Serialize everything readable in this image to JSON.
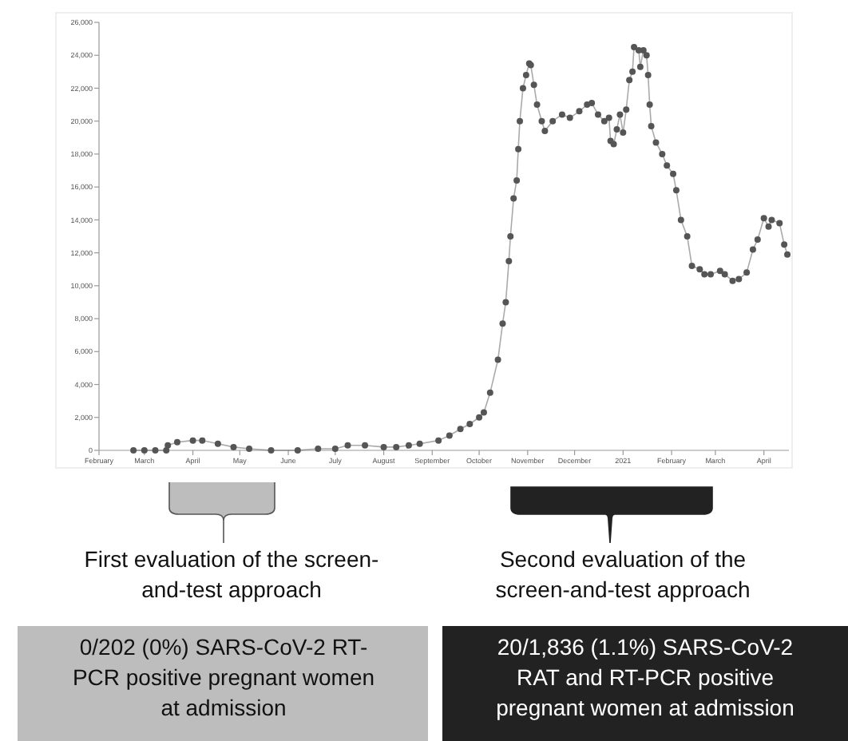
{
  "chart_data": {
    "type": "line",
    "marker": "circle",
    "grid": false,
    "xlim": [
      "2020-02-01",
      "2021-04-17"
    ],
    "xticks": [
      {
        "value": "2020-02-01",
        "label": "February"
      },
      {
        "value": "2020-03-01",
        "label": "March"
      },
      {
        "value": "2020-04-01",
        "label": "April"
      },
      {
        "value": "2020-05-01",
        "label": "May"
      },
      {
        "value": "2020-06-01",
        "label": "June"
      },
      {
        "value": "2020-07-01",
        "label": "July"
      },
      {
        "value": "2020-08-01",
        "label": "August"
      },
      {
        "value": "2020-09-01",
        "label": "September"
      },
      {
        "value": "2020-10-01",
        "label": "October"
      },
      {
        "value": "2020-11-01",
        "label": "November"
      },
      {
        "value": "2020-12-01",
        "label": "December"
      },
      {
        "value": "2021-01-01",
        "label": "2021"
      },
      {
        "value": "2021-02-01",
        "label": "February"
      },
      {
        "value": "2021-03-01",
        "label": "March"
      },
      {
        "value": "2021-04-01",
        "label": "April"
      }
    ],
    "ylim": [
      0,
      26000
    ],
    "yticks": [
      {
        "value": 0,
        "label": "0"
      },
      {
        "value": 2000,
        "label": "2,000"
      },
      {
        "value": 4000,
        "label": "4,000"
      },
      {
        "value": 6000,
        "label": "6,000"
      },
      {
        "value": 8000,
        "label": "8,000"
      },
      {
        "value": 10000,
        "label": "10,000"
      },
      {
        "value": 12000,
        "label": "12,000"
      },
      {
        "value": 14000,
        "label": "14,000"
      },
      {
        "value": 16000,
        "label": "16,000"
      },
      {
        "value": 18000,
        "label": "18,000"
      },
      {
        "value": 20000,
        "label": "20,000"
      },
      {
        "value": 22000,
        "label": "22,000"
      },
      {
        "value": 24000,
        "label": "24,000"
      },
      {
        "value": 26000,
        "label": "26,000"
      }
    ],
    "series": [
      {
        "color": "#555555",
        "x": [
          "2020-02-23",
          "2020-03-01",
          "2020-03-08",
          "2020-03-15",
          "2020-03-16",
          "2020-03-22",
          "2020-04-01",
          "2020-04-07",
          "2020-04-17",
          "2020-04-27",
          "2020-05-07",
          "2020-05-21",
          "2020-06-07",
          "2020-06-20",
          "2020-07-01",
          "2020-07-09",
          "2020-07-20",
          "2020-08-01",
          "2020-08-09",
          "2020-08-17",
          "2020-08-24",
          "2020-09-05",
          "2020-09-12",
          "2020-09-19",
          "2020-09-25",
          "2020-10-01",
          "2020-10-04",
          "2020-10-08",
          "2020-10-13",
          "2020-10-16",
          "2020-10-18",
          "2020-10-20",
          "2020-10-21",
          "2020-10-23",
          "2020-10-25",
          "2020-10-26",
          "2020-10-27",
          "2020-10-29",
          "2020-10-31",
          "2020-11-02",
          "2020-11-03",
          "2020-11-05",
          "2020-11-07",
          "2020-11-10",
          "2020-11-12",
          "2020-11-17",
          "2020-11-23",
          "2020-11-28",
          "2020-12-04",
          "2020-12-09",
          "2020-12-12",
          "2020-12-16",
          "2020-12-20",
          "2020-12-23",
          "2020-12-24",
          "2020-12-26",
          "2020-12-28",
          "2020-12-30",
          "2021-01-01",
          "2021-01-03",
          "2021-01-05",
          "2021-01-07",
          "2021-01-08",
          "2021-01-11",
          "2021-01-12",
          "2021-01-14",
          "2021-01-16",
          "2021-01-17",
          "2021-01-18",
          "2021-01-19",
          "2021-01-22",
          "2021-01-26",
          "2021-01-29",
          "2021-02-02",
          "2021-02-04",
          "2021-02-07",
          "2021-02-11",
          "2021-02-14",
          "2021-02-19",
          "2021-02-22",
          "2021-02-26",
          "2021-03-04",
          "2021-03-07",
          "2021-03-12",
          "2021-03-16",
          "2021-03-21",
          "2021-03-25",
          "2021-03-28",
          "2021-04-01",
          "2021-04-04",
          "2021-04-06",
          "2021-04-11",
          "2021-04-14",
          "2021-04-16"
        ],
        "values": [
          0,
          0,
          0,
          0,
          300,
          500,
          600,
          600,
          400,
          200,
          100,
          0,
          0,
          100,
          100,
          300,
          300,
          200,
          200,
          300,
          400,
          600,
          900,
          1300,
          1600,
          2000,
          2300,
          3500,
          5500,
          7700,
          9000,
          11500,
          13000,
          15300,
          16400,
          18300,
          20000,
          22000,
          22800,
          23500,
          23400,
          22200,
          21000,
          20000,
          19400,
          20000,
          20400,
          20200,
          20600,
          21000,
          21100,
          20400,
          20000,
          20200,
          18800,
          18600,
          19500,
          20400,
          19300,
          20700,
          22500,
          23000,
          24500,
          24300,
          23300,
          24300,
          24000,
          22800,
          21000,
          19700,
          18700,
          18000,
          17300,
          16800,
          15800,
          14000,
          13000,
          11200,
          11000,
          10700,
          10700,
          10900,
          10700,
          10300,
          10400,
          10800,
          12200,
          12800,
          14100,
          13600,
          14000,
          13800,
          12500,
          11900
        ]
      }
    ],
    "annotations": [
      "First evaluation of the screen-\nand-test approach",
      "Second evaluation of the\nscreen-and-test approach",
      "0/202 (0%) SARS-CoV-2 RT-\nPCR positive pregnant women\nat admission",
      "20/1,836 (1.1%) SARS-CoV-2\nRAT and RT-PCR positive\npregnant women at admission"
    ]
  }
}
